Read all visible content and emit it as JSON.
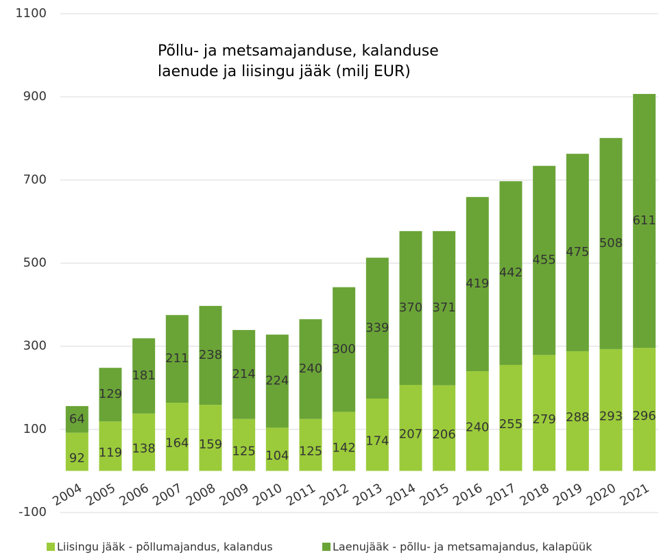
{
  "chart_data": {
    "type": "bar",
    "stacked": true,
    "title": [
      "Põllu- ja metsamajanduse, kalanduse",
      "laenude ja liisingu jääk (milj EUR)"
    ],
    "categories": [
      "2004",
      "2005",
      "2006",
      "2007",
      "2008",
      "2009",
      "2010",
      "2011",
      "2012",
      "2013",
      "2014",
      "2015",
      "2016",
      "2017",
      "2018",
      "2019",
      "2020",
      "2021"
    ],
    "series": [
      {
        "name": "Liisingu jääk - põllumajandus, kalandus",
        "color": "#9bcb3b",
        "values": [
          92,
          119,
          138,
          164,
          159,
          125,
          104,
          125,
          142,
          174,
          207,
          206,
          240,
          255,
          279,
          288,
          293,
          296
        ]
      },
      {
        "name": "Laenujääk - põllu- ja metsamajandus, kalapüük",
        "color": "#6aa437",
        "values": [
          64,
          129,
          181,
          211,
          238,
          214,
          224,
          240,
          300,
          339,
          370,
          371,
          419,
          442,
          455,
          475,
          508,
          611
        ]
      }
    ],
    "ylim": [
      -100,
      1100
    ],
    "yticks": [
      -100,
      100,
      300,
      500,
      700,
      900,
      1100
    ],
    "grid": true
  }
}
